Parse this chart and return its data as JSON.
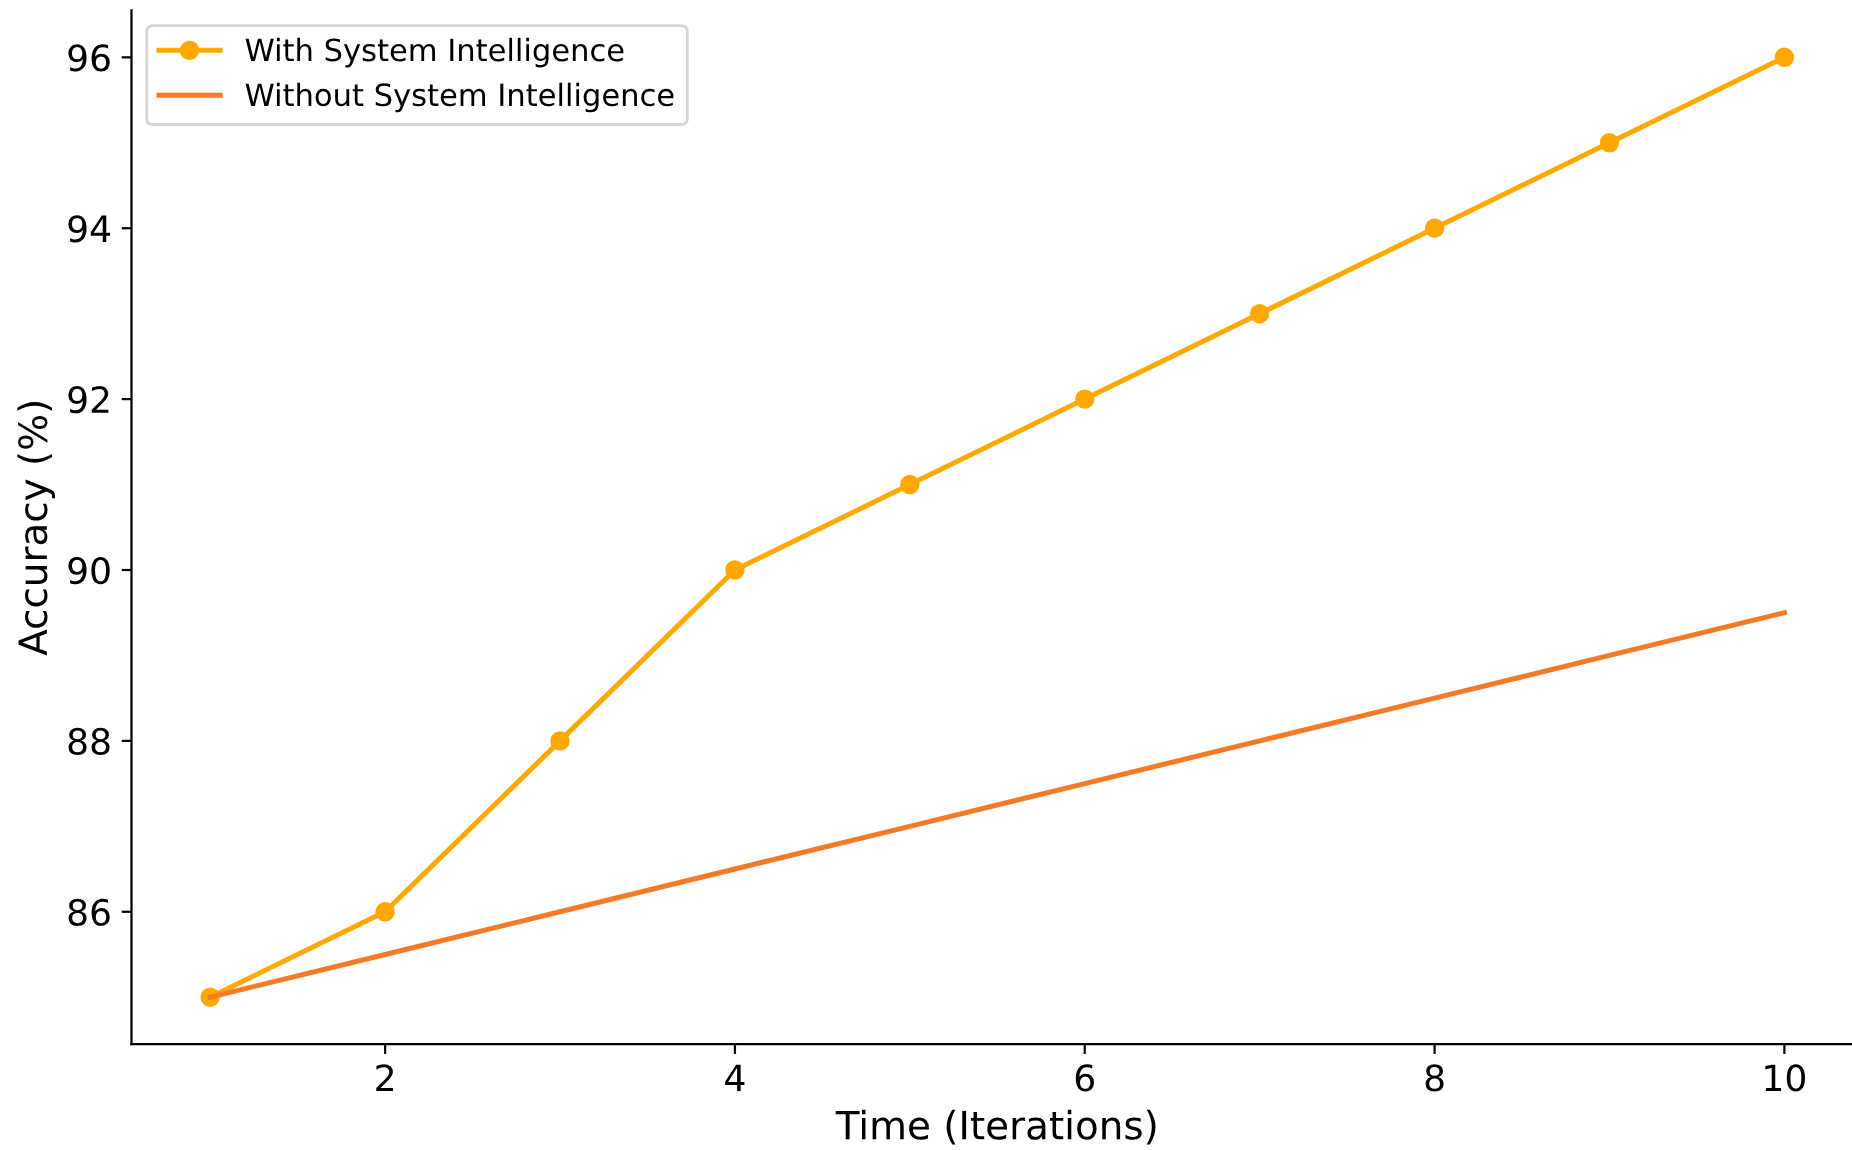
{
  "chart_data": {
    "type": "line",
    "xlabel": "Time (Iterations)",
    "ylabel": "Accuracy (%)",
    "x": [
      1,
      2,
      3,
      4,
      5,
      6,
      7,
      8,
      9,
      10
    ],
    "series": [
      {
        "name": "With System Intelligence",
        "color": "#ffa800",
        "values": [
          85,
          86,
          88,
          90,
          91,
          92,
          93,
          94,
          95,
          96
        ],
        "marker": "circle"
      },
      {
        "name": "Without System Intelligence",
        "color": "#f47a26",
        "values": [
          85,
          85.5,
          86,
          86.5,
          87,
          87.5,
          88,
          88.5,
          89,
          89.5
        ],
        "marker": "none"
      }
    ],
    "xlim": [
      0.55,
      10.45
    ],
    "ylim": [
      84.45,
      96.55
    ],
    "xticks": [
      2,
      4,
      6,
      8,
      10
    ],
    "yticks": [
      86,
      88,
      90,
      92,
      94,
      96
    ],
    "grid": false,
    "legend": "top left",
    "line_style": "solid"
  }
}
